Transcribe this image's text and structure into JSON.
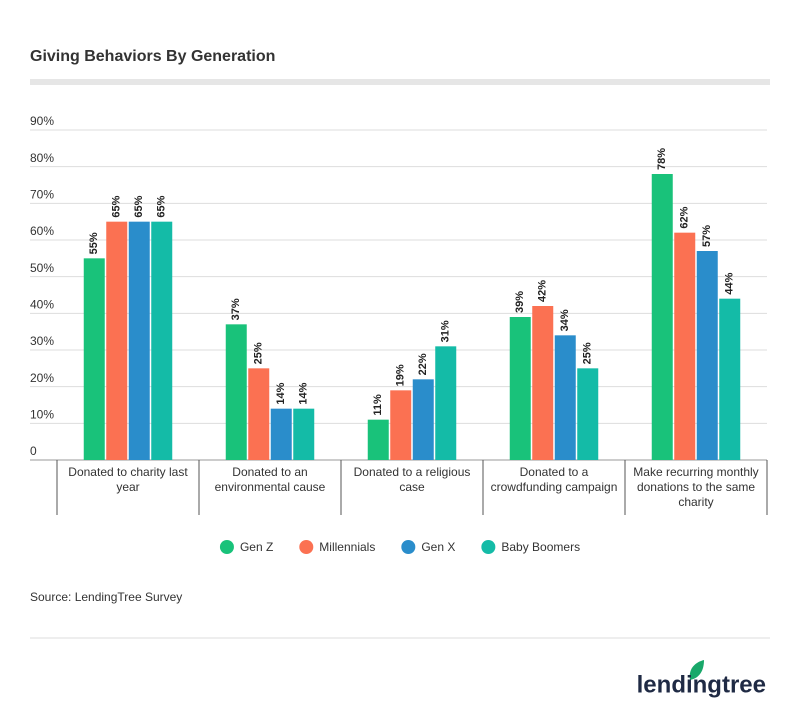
{
  "chart_data": {
    "type": "bar",
    "title": "Giving Behaviors By Generation",
    "categories": [
      "Donated to charity last year",
      "Donated to an environmental cause",
      "Donated to a religious case",
      "Donated to a crowdfunding campaign",
      "Make recurring monthly donations to the same charity"
    ],
    "series": [
      {
        "name": "Gen Z",
        "color": "#19c27a",
        "values": [
          55,
          37,
          11,
          39,
          78
        ],
        "value_labels": [
          "55%",
          "37%",
          "11%",
          "39%",
          "78%"
        ]
      },
      {
        "name": "Millennials",
        "color": "#fb7152",
        "values": [
          65,
          25,
          19,
          42,
          62
        ],
        "value_labels": [
          "65%",
          "25%",
          "19%",
          "42%",
          "62%"
        ]
      },
      {
        "name": "Gen X",
        "color": "#2a8dcb",
        "values": [
          65,
          14,
          22,
          34,
          57
        ],
        "value_labels": [
          "65%",
          "14%",
          "22%",
          "34%",
          "57%"
        ]
      },
      {
        "name": "Baby Boomers",
        "color": "#14bba7",
        "values": [
          65,
          14,
          31,
          25,
          44
        ],
        "value_labels": [
          "65%",
          "14%",
          "31%",
          "25%",
          "44%"
        ]
      }
    ],
    "ylim": [
      0,
      90
    ],
    "yticks": [
      0,
      {
        "value": 10,
        "label": "10%"
      },
      {
        "value": 20,
        "label": "20%"
      },
      {
        "value": 30,
        "label": "30%"
      },
      {
        "value": 40,
        "label": "40%"
      },
      {
        "value": 50,
        "label": "50%"
      },
      {
        "value": 60,
        "label": "60%"
      },
      {
        "value": 70,
        "label": "70%"
      },
      {
        "value": 80,
        "label": "80%"
      },
      {
        "value": 90,
        "label": "90%"
      }
    ],
    "grid": true,
    "source": "Source: LendingTree Survey"
  },
  "logo": {
    "text": "lendingtree"
  }
}
